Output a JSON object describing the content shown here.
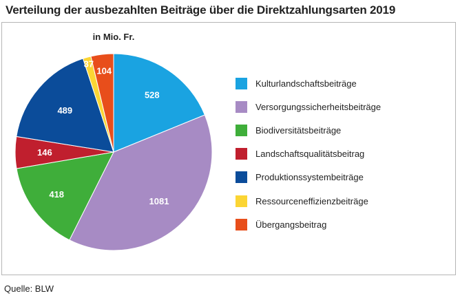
{
  "chart_data": {
    "type": "pie",
    "title": "Verteilung der ausbezahlten Beiträge über die Direktzahlungsarten 2019",
    "unit_label": "in Mio. Fr.",
    "source": "Quelle: BLW",
    "categories": [
      "Kulturlandschaftsbeiträge",
      "Versorgungssicherheitsbeiträge",
      "Biodiversitätsbeiträge",
      "Landschaftsqualitätsbeitrag",
      "Produktionssystembeiträge",
      "Ressourceneffizienzbeiträge",
      "Übergangsbeitrag"
    ],
    "values": [
      528,
      1081,
      418,
      146,
      489,
      37,
      104
    ],
    "labels": [
      "528",
      "1081",
      "418",
      "146",
      "489",
      "37",
      "104"
    ],
    "colors": [
      "#1aa3e1",
      "#a78bc4",
      "#3fae3a",
      "#c01f2e",
      "#0b4c9a",
      "#fbd534",
      "#e84e1b"
    ],
    "start": "12 o'clock",
    "direction": "clockwise",
    "legend_position": "right"
  }
}
